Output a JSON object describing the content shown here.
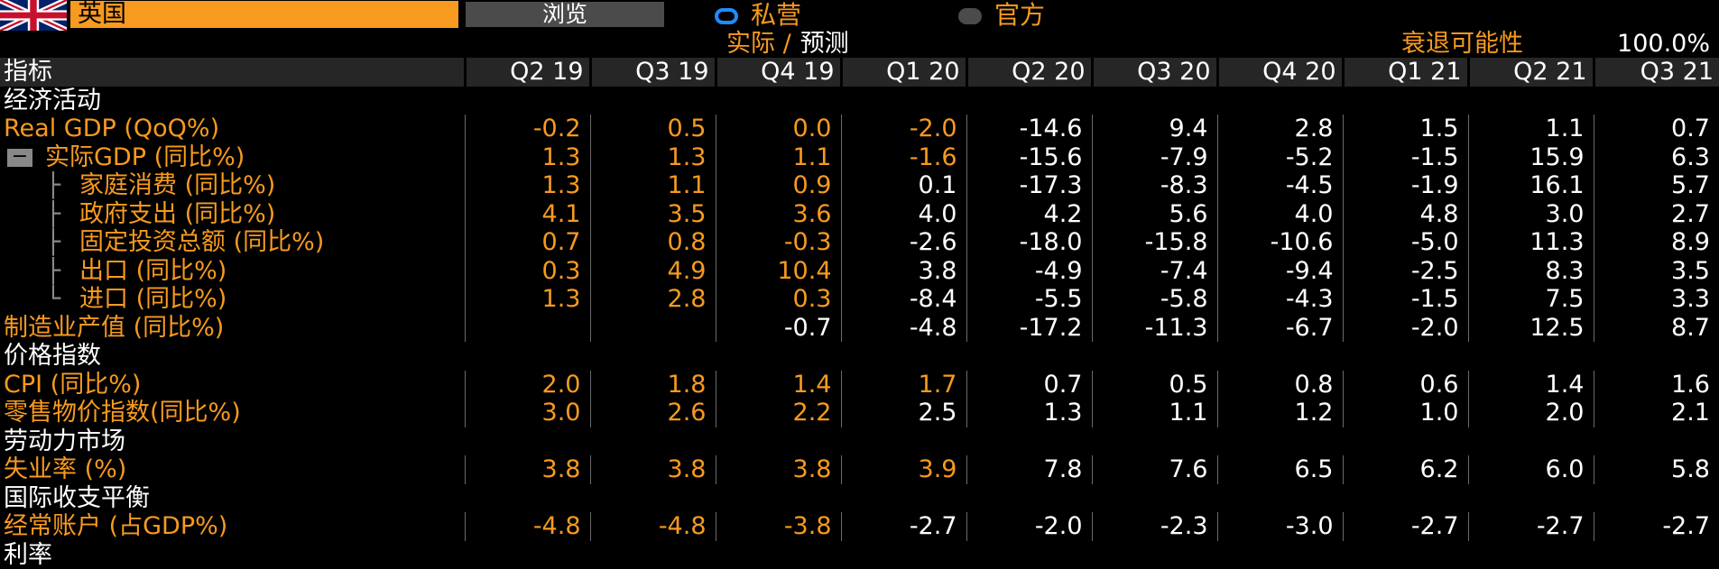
{
  "header": {
    "country": "英国",
    "browse_label": "浏览",
    "radio_private": "私营",
    "radio_official": "官方",
    "actual_label": "实际 /",
    "forecast_label": "预测",
    "recession_label": "衰退可能性",
    "recession_value": "100.0%"
  },
  "columns": {
    "indicator": "指标",
    "periods": [
      "Q2 19",
      "Q3 19",
      "Q4 19",
      "Q1 20",
      "Q2 20",
      "Q3 20",
      "Q4 20",
      "Q1 21",
      "Q2 21",
      "Q3 21"
    ]
  },
  "rows": [
    {
      "type": "section",
      "label": "经济活动"
    },
    {
      "type": "data",
      "label": "Real GDP (QoQ%)",
      "values": [
        "-0.2",
        "0.5",
        "0.0",
        "-2.0",
        "-14.6",
        "9.4",
        "2.8",
        "1.5",
        "1.1",
        "0.7"
      ],
      "actual_count": 4
    },
    {
      "type": "data",
      "label": "实际GDP (同比%)",
      "collapse": true,
      "values": [
        "1.3",
        "1.3",
        "1.1",
        "-1.6",
        "-15.6",
        "-7.9",
        "-5.2",
        "-1.5",
        "15.9",
        "6.3"
      ],
      "actual_count": 4
    },
    {
      "type": "data",
      "label": "家庭消费 (同比%)",
      "child": true,
      "values": [
        "1.3",
        "1.1",
        "0.9",
        "0.1",
        "-17.3",
        "-8.3",
        "-4.5",
        "-1.9",
        "16.1",
        "5.7"
      ],
      "actual_count": 3
    },
    {
      "type": "data",
      "label": "政府支出 (同比%)",
      "child": true,
      "values": [
        "4.1",
        "3.5",
        "3.6",
        "4.0",
        "4.2",
        "5.6",
        "4.0",
        "4.8",
        "3.0",
        "2.7"
      ],
      "actual_count": 3
    },
    {
      "type": "data",
      "label": "固定投资总额 (同比%)",
      "child": true,
      "values": [
        "0.7",
        "0.8",
        "-0.3",
        "-2.6",
        "-18.0",
        "-15.8",
        "-10.6",
        "-5.0",
        "11.3",
        "8.9"
      ],
      "actual_count": 3
    },
    {
      "type": "data",
      "label": "出口 (同比%)",
      "child": true,
      "values": [
        "0.3",
        "4.9",
        "10.4",
        "3.8",
        "-4.9",
        "-7.4",
        "-9.4",
        "-2.5",
        "8.3",
        "3.5"
      ],
      "actual_count": 3
    },
    {
      "type": "data",
      "label": "进口 (同比%)",
      "child": true,
      "last": true,
      "values": [
        "1.3",
        "2.8",
        "0.3",
        "-8.4",
        "-5.5",
        "-5.8",
        "-4.3",
        "-1.5",
        "7.5",
        "3.3"
      ],
      "actual_count": 3
    },
    {
      "type": "data",
      "label": "制造业产值 (同比%)",
      "values": [
        "",
        "",
        "-0.7",
        "-4.8",
        "-17.2",
        "-11.3",
        "-6.7",
        "-2.0",
        "12.5",
        "8.7"
      ],
      "actual_count": 0
    },
    {
      "type": "section",
      "label": "价格指数"
    },
    {
      "type": "data",
      "label": "CPI (同比%)",
      "values": [
        "2.0",
        "1.8",
        "1.4",
        "1.7",
        "0.7",
        "0.5",
        "0.8",
        "0.6",
        "1.4",
        "1.6"
      ],
      "actual_count": 4
    },
    {
      "type": "data",
      "label": "零售物价指数(同比%)",
      "values": [
        "3.0",
        "2.6",
        "2.2",
        "2.5",
        "1.3",
        "1.1",
        "1.2",
        "1.0",
        "2.0",
        "2.1"
      ],
      "actual_count": 3
    },
    {
      "type": "section",
      "label": "劳动力市场"
    },
    {
      "type": "data",
      "label": "失业率 (%)",
      "values": [
        "3.8",
        "3.8",
        "3.8",
        "3.9",
        "7.8",
        "7.6",
        "6.5",
        "6.2",
        "6.0",
        "5.8"
      ],
      "actual_count": 4
    },
    {
      "type": "section",
      "label": "国际收支平衡"
    },
    {
      "type": "data",
      "label": "经常账户 (占GDP%)",
      "values": [
        "-4.8",
        "-4.8",
        "-3.8",
        "-2.7",
        "-2.0",
        "-2.3",
        "-3.0",
        "-2.7",
        "-2.7",
        "-2.7"
      ],
      "actual_count": 3
    },
    {
      "type": "section",
      "label": "利率"
    }
  ],
  "colors": {
    "accent": "#f79a1f",
    "header_bg": "#262626",
    "radio_active": "#1e8cff"
  },
  "icons": {
    "flag": "uk-flag-icon",
    "collapse": "minus-icon",
    "radio_on": "radio-selected-icon",
    "radio_off": "radio-unselected-icon"
  }
}
